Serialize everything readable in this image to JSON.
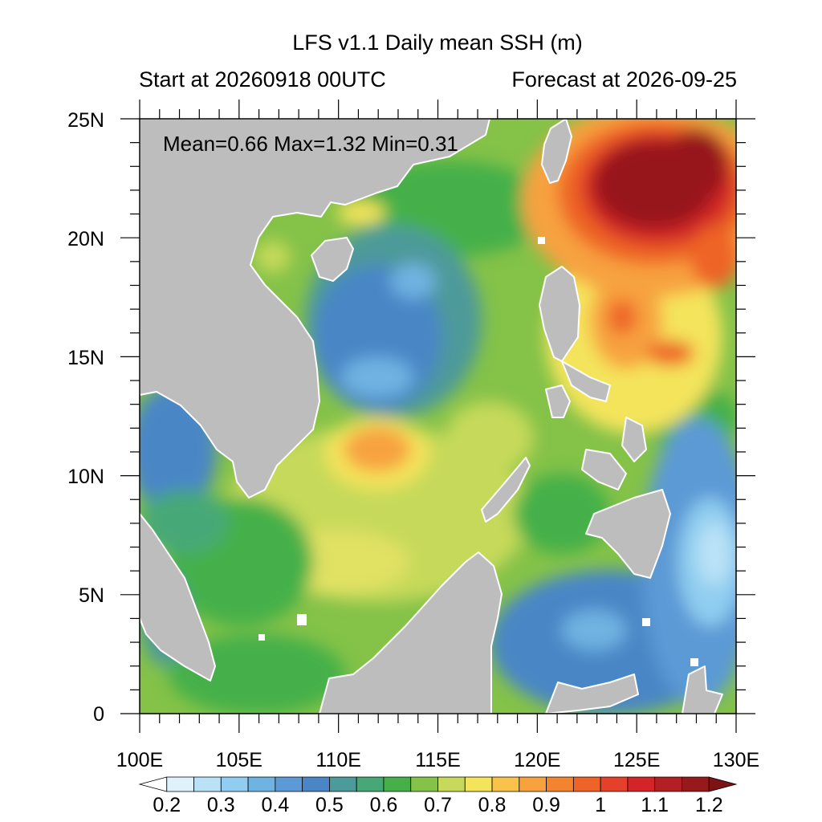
{
  "title": "LFS v1.1 Daily mean SSH (m)",
  "subtitle_left": "Start at 20260918 00UTC",
  "subtitle_right": "Forecast at 2026-09-25",
  "stats": "Mean=0.66  Max=1.32  Min=0.31",
  "map": {
    "lon_range": [
      100,
      130
    ],
    "lat_range": [
      0,
      25
    ],
    "lon_ticks": [
      "100E",
      "105E",
      "110E",
      "115E",
      "120E",
      "125E",
      "130E"
    ],
    "lat_ticks": [
      "0",
      "5N",
      "10N",
      "15N",
      "20N",
      "25N"
    ],
    "land_color": "#bdbdbd"
  },
  "colorbar": {
    "levels": [
      0.2,
      0.25,
      0.3,
      0.35,
      0.4,
      0.45,
      0.5,
      0.55,
      0.6,
      0.65,
      0.7,
      0.75,
      0.8,
      0.85,
      0.9,
      0.95,
      1.0,
      1.05,
      1.1,
      1.15,
      1.2
    ],
    "labels": [
      "0.2",
      "0.3",
      "0.4",
      "0.5",
      "0.6",
      "0.7",
      "0.8",
      "0.9",
      "1",
      "1.1",
      "1.2"
    ],
    "colors": [
      "#ffffff",
      "#dff2fb",
      "#b9e2f6",
      "#90cdf0",
      "#6fb3e2",
      "#5b9ad6",
      "#4a86c6",
      "#4d9a9a",
      "#47a877",
      "#45b04a",
      "#84c248",
      "#c6d95a",
      "#f4e45b",
      "#f9c24b",
      "#f7a23f",
      "#f28430",
      "#ee6428",
      "#e5412a",
      "#d32528",
      "#b41f24",
      "#97191b",
      "#7d1315"
    ]
  }
}
